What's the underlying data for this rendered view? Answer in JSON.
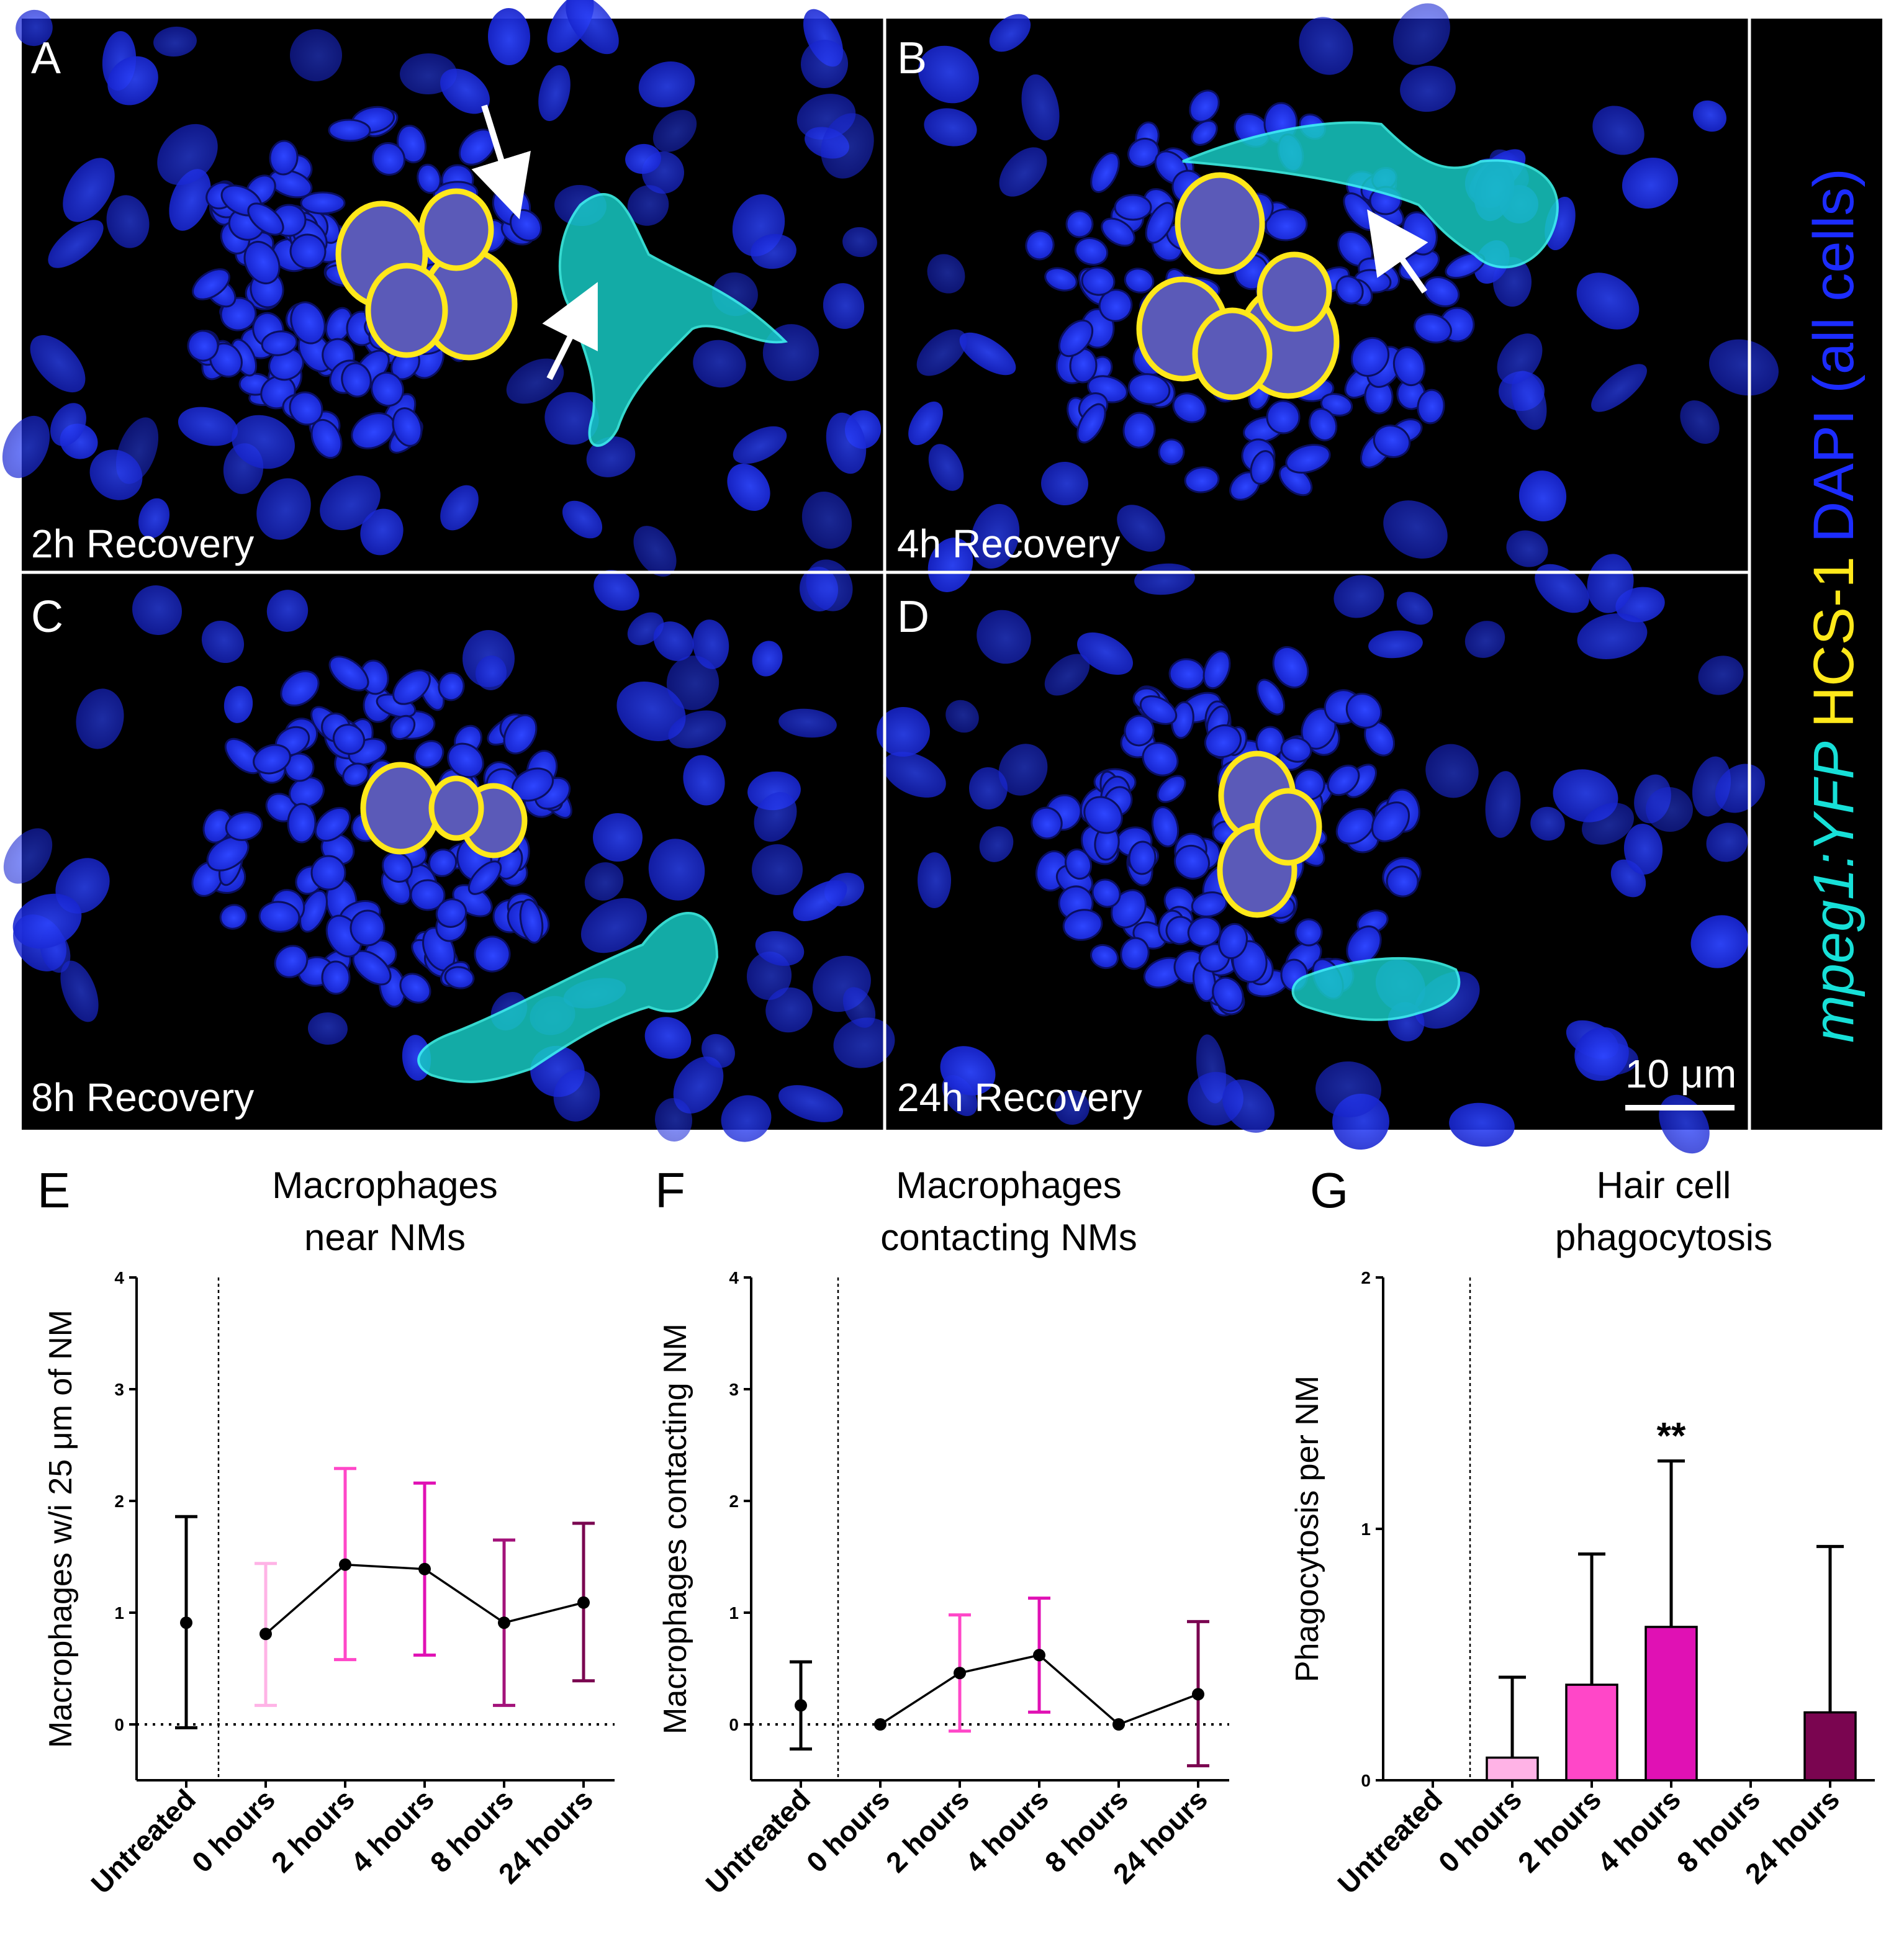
{
  "panels": {
    "A": {
      "letter": "A",
      "caption": "2h Recovery"
    },
    "B": {
      "letter": "B",
      "caption": "4h Recovery"
    },
    "C": {
      "letter": "C",
      "caption": "8h Recovery"
    },
    "D": {
      "letter": "D",
      "caption": "24h Recovery"
    },
    "scalebar": "10 μm"
  },
  "legend": {
    "cyan_text": "mpeg1:YFP",
    "yellow_text": "HCS-1",
    "blue_text": "DAPI (all cells)",
    "colors": {
      "cyan": "#17e0d8",
      "yellow": "#ffe81a",
      "blue": "#1c2cff"
    }
  },
  "chart_data": [
    {
      "id": "E",
      "letter": "E",
      "type": "scatter",
      "title_lines": [
        "Macrophages",
        "near NMs"
      ],
      "ylabel": "Macrophages w/i 25 μm of NM",
      "categories": [
        "Untreated",
        "0 hours",
        "2 hours",
        "4 hours",
        "8 hours",
        "24 hours"
      ],
      "ylim": [
        -0.5,
        4
      ],
      "yticks": [
        0,
        1,
        2,
        3,
        4
      ],
      "mean": [
        0.91,
        0.81,
        1.43,
        1.39,
        0.91,
        1.09
      ],
      "err_low": [
        -0.03,
        0.17,
        0.58,
        0.62,
        0.17,
        0.39
      ],
      "err_high": [
        1.86,
        1.44,
        2.29,
        2.16,
        1.65,
        1.8
      ],
      "colors": [
        "#000000",
        "#ffb3e6",
        "#ff47c8",
        "#e011b4",
        "#a3127a",
        "#7a0550"
      ],
      "connected_from_index": 1
    },
    {
      "id": "F",
      "letter": "F",
      "type": "scatter",
      "title_lines": [
        "Macrophages",
        "contacting NMs"
      ],
      "ylabel": "Macrophages contacting NM",
      "categories": [
        "Untreated",
        "0 hours",
        "2 hours",
        "4 hours",
        "8 hours",
        "24 hours"
      ],
      "ylim": [
        -0.5,
        4
      ],
      "yticks": [
        0,
        1,
        2,
        3,
        4
      ],
      "mean": [
        0.17,
        0.0,
        0.46,
        0.62,
        0.0,
        0.27
      ],
      "err_low": [
        -0.22,
        0.0,
        -0.06,
        0.11,
        0.0,
        -0.37
      ],
      "err_high": [
        0.56,
        0.0,
        0.98,
        1.13,
        0.0,
        0.92
      ],
      "colors": [
        "#000000",
        "#ffb3e6",
        "#ff47c8",
        "#e011b4",
        "#a3127a",
        "#7a0550"
      ],
      "connected_from_index": 1
    },
    {
      "id": "G",
      "letter": "G",
      "type": "bar",
      "title_lines": [
        "Hair cell",
        "phagocytosis"
      ],
      "ylabel": "Phagocytosis per NM",
      "categories": [
        "Untreated",
        "0 hours",
        "2 hours",
        "4 hours",
        "8 hours",
        "24 hours"
      ],
      "ylim": [
        0,
        2
      ],
      "yticks": [
        0,
        1,
        2
      ],
      "values": [
        0,
        0.09,
        0.38,
        0.61,
        0,
        0.27
      ],
      "err_high": [
        0,
        0.41,
        0.9,
        1.27,
        0,
        0.93
      ],
      "colors": [
        "#000000",
        "#ffb3e6",
        "#ff47c8",
        "#e011b4",
        "#a3127a",
        "#7a0550"
      ],
      "annotation": {
        "text": "**",
        "category_index": 3
      }
    }
  ]
}
